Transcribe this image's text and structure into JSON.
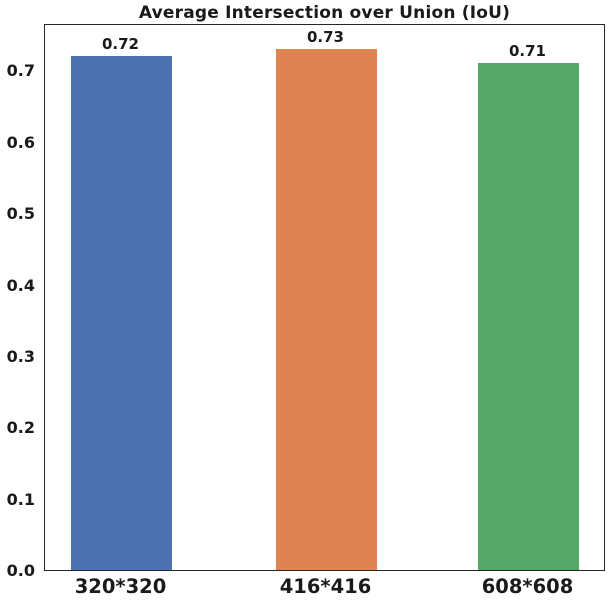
{
  "figure": {
    "background": "#ffffff",
    "spine_color": "#262626",
    "text_color": "#1a1a1a"
  },
  "chart_data": {
    "type": "bar",
    "title": "Average Intersection over Union (IoU)",
    "categories": [
      "320*320",
      "416*416",
      "608*608"
    ],
    "values": [
      0.72,
      0.73,
      0.71
    ],
    "bar_labels": [
      "0.72",
      "0.73",
      "0.71"
    ],
    "bar_colors": [
      "#4C72B0",
      "#DD8452",
      "#55A868"
    ],
    "xlabel": "",
    "ylabel": "",
    "ylim": [
      0,
      0.7665
    ],
    "yticks": [
      0.0,
      0.1,
      0.2,
      0.3,
      0.4,
      0.5,
      0.6,
      0.7
    ],
    "ytick_labels": [
      "0.0",
      "0.1",
      "0.2",
      "0.3",
      "0.4",
      "0.5",
      "0.6",
      "0.7"
    ],
    "grid": false,
    "legend": false,
    "tick_marks": false
  }
}
